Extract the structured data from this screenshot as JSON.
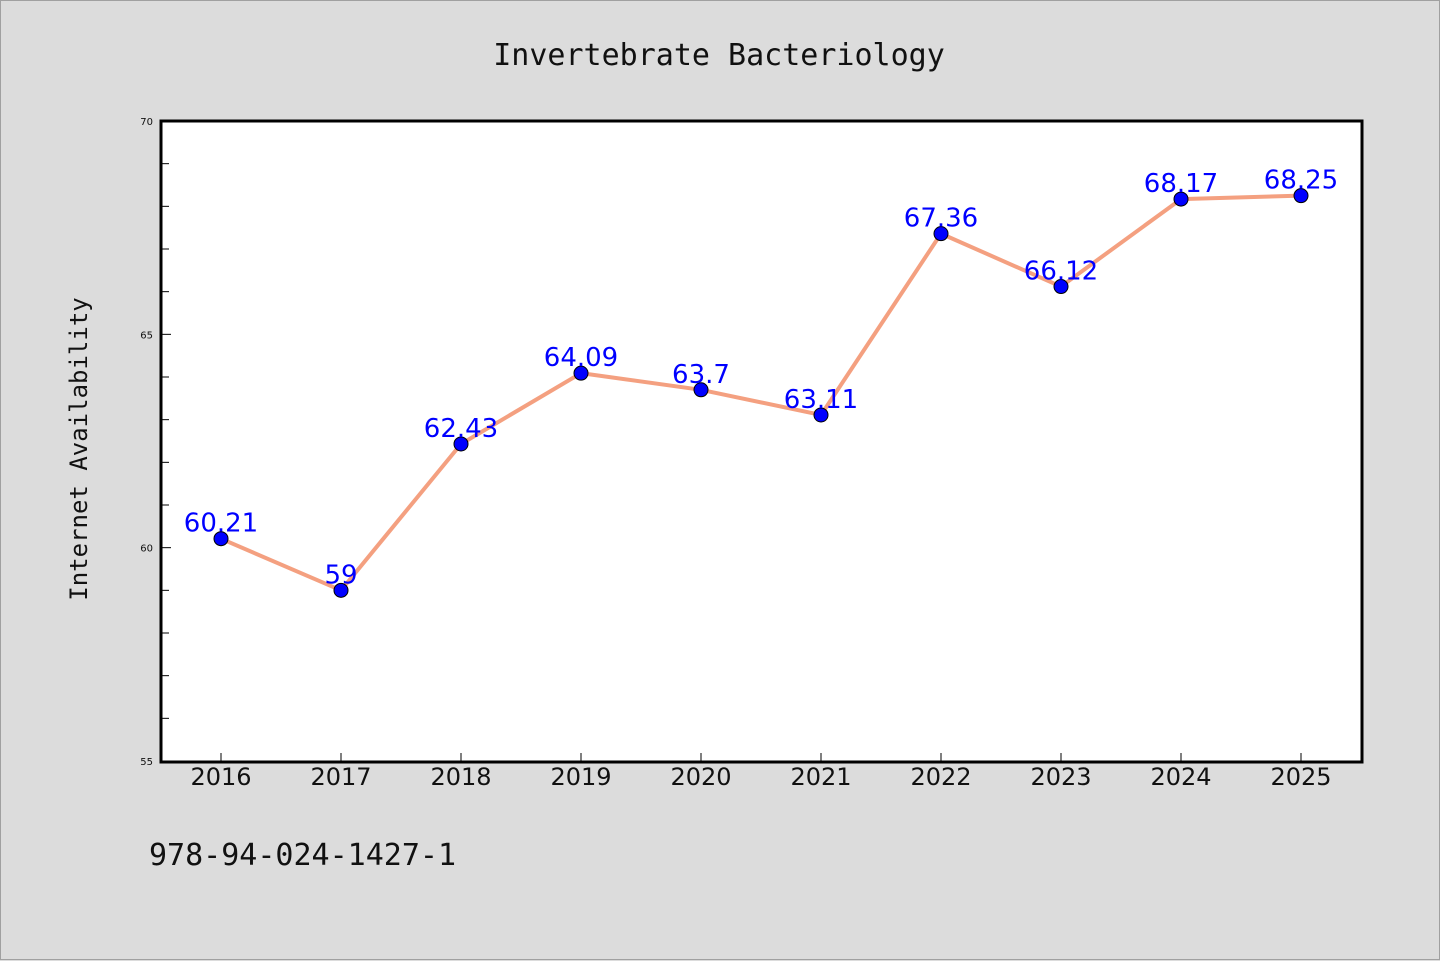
{
  "chart_data": {
    "type": "line",
    "title": "Invertebrate Bacteriology",
    "xlabel": "",
    "ylabel": "Internet Availability",
    "categories": [
      "2016",
      "2017",
      "2018",
      "2019",
      "2020",
      "2021",
      "2022",
      "2023",
      "2024",
      "2025"
    ],
    "series": [
      {
        "values": [
          60.21,
          59,
          62.43,
          64.09,
          63.7,
          63.11,
          67.36,
          66.12,
          68.17,
          68.25
        ],
        "labels": [
          "60.21",
          "59",
          "62.43",
          "64.09",
          "63.7",
          "63.11",
          "67.36",
          "66.12",
          "68.17",
          "68.25"
        ]
      }
    ],
    "ylim": [
      55,
      70
    ],
    "yticks": [
      "55",
      "60",
      "65",
      "70"
    ],
    "grid": false,
    "legend": "none",
    "colors": {
      "line": "#f4a080",
      "marker": "#0000ff",
      "data_label": "#0000ff",
      "background": "#dcdcdc",
      "plot_area": "#ffffff"
    }
  },
  "footer": {
    "isbn": "978-94-024-1427-1"
  }
}
